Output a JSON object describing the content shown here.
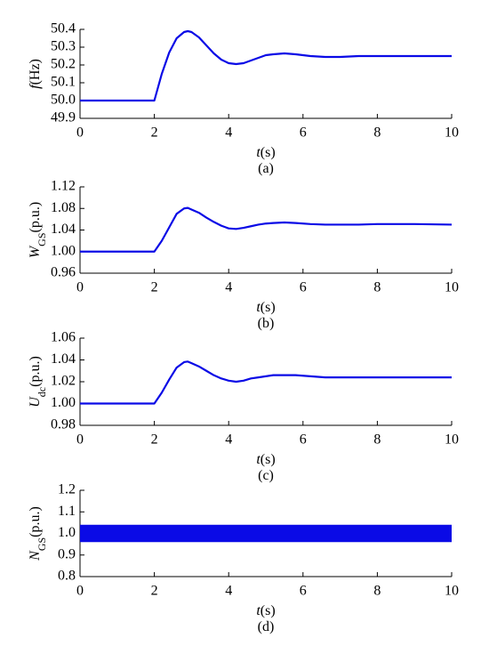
{
  "chart_data": [
    {
      "type": "line",
      "caption": "(a)",
      "ylabel": {
        "symbol": "f",
        "unit": "(Hz)"
      },
      "xlabel": {
        "symbol": "t",
        "unit": "(s)"
      },
      "xlim": [
        0,
        10
      ],
      "xticks": [
        0,
        2,
        4,
        6,
        8,
        10
      ],
      "ylim": [
        49.9,
        50.4
      ],
      "yticks": [
        {
          "value": 49.9,
          "label": "49.9"
        },
        {
          "value": 50,
          "label": "50.0"
        },
        50.1,
        50.2,
        50.3,
        50.4
      ],
      "series": [
        {
          "color": "#0a0ae6",
          "x": [
            0,
            2,
            2.2,
            2.4,
            2.6,
            2.8,
            2.9,
            3.0,
            3.2,
            3.4,
            3.6,
            3.8,
            4.0,
            4.2,
            4.4,
            4.6,
            4.8,
            5.0,
            5.2,
            5.5,
            5.8,
            6.2,
            6.6,
            7.0,
            7.5,
            8,
            9,
            10
          ],
          "values": [
            50.0,
            50.0,
            50.15,
            50.27,
            50.35,
            50.385,
            50.39,
            50.385,
            50.355,
            50.31,
            50.265,
            50.23,
            50.21,
            50.205,
            50.21,
            50.225,
            50.24,
            50.255,
            50.26,
            50.265,
            50.26,
            50.25,
            50.245,
            50.245,
            50.25,
            50.25,
            50.25,
            50.25
          ]
        }
      ]
    },
    {
      "type": "line",
      "caption": "(b)",
      "ylabel": {
        "symbol": "W",
        "sub": "GS",
        "unit": "(p.u.)"
      },
      "xlabel": {
        "symbol": "t",
        "unit": "(s)"
      },
      "xlim": [
        0,
        10
      ],
      "xticks": [
        0,
        2,
        4,
        6,
        8,
        10
      ],
      "ylim": [
        0.96,
        1.12
      ],
      "yticks": [
        0.96,
        {
          "value": 1,
          "label": "1.00"
        },
        1.04,
        1.08,
        1.12
      ],
      "series": [
        {
          "color": "#0a0ae6",
          "x": [
            0,
            2,
            2.2,
            2.4,
            2.6,
            2.8,
            2.9,
            3.0,
            3.2,
            3.4,
            3.6,
            3.8,
            4.0,
            4.2,
            4.4,
            4.6,
            4.8,
            5.0,
            5.2,
            5.5,
            5.8,
            6.2,
            6.6,
            7.0,
            7.5,
            8,
            9,
            10
          ],
          "values": [
            1.0,
            1.0,
            1.02,
            1.045,
            1.07,
            1.08,
            1.081,
            1.078,
            1.072,
            1.063,
            1.055,
            1.048,
            1.043,
            1.042,
            1.044,
            1.047,
            1.05,
            1.052,
            1.053,
            1.054,
            1.053,
            1.051,
            1.05,
            1.05,
            1.05,
            1.051,
            1.051,
            1.05
          ]
        }
      ]
    },
    {
      "type": "line",
      "caption": "(c)",
      "ylabel": {
        "symbol": "U",
        "sub": "dc",
        "unit": "(p.u.)"
      },
      "xlabel": {
        "symbol": "t",
        "unit": "(s)"
      },
      "xlim": [
        0,
        10
      ],
      "xticks": [
        0,
        2,
        4,
        6,
        8,
        10
      ],
      "ylim": [
        0.98,
        1.06
      ],
      "yticks": [
        0.98,
        {
          "value": 1,
          "label": "1.00"
        },
        1.02,
        1.04,
        1.06
      ],
      "series": [
        {
          "color": "#0a0ae6",
          "x": [
            0,
            2,
            2.2,
            2.4,
            2.6,
            2.8,
            2.9,
            3.0,
            3.2,
            3.4,
            3.6,
            3.8,
            4.0,
            4.2,
            4.4,
            4.6,
            4.8,
            5.0,
            5.2,
            5.5,
            5.8,
            6.2,
            6.6,
            7.0,
            7.5,
            8,
            9,
            10
          ],
          "values": [
            1.0,
            1.0,
            1.01,
            1.022,
            1.033,
            1.038,
            1.0385,
            1.037,
            1.034,
            1.03,
            1.026,
            1.023,
            1.021,
            1.02,
            1.021,
            1.023,
            1.024,
            1.025,
            1.026,
            1.026,
            1.026,
            1.025,
            1.024,
            1.024,
            1.024,
            1.024,
            1.024,
            1.024
          ]
        }
      ]
    },
    {
      "type": "band",
      "caption": "(d)",
      "ylabel": {
        "symbol": "N",
        "sub": "GS",
        "unit": "(p.u.)"
      },
      "xlabel": {
        "symbol": "t",
        "unit": "(s)"
      },
      "xlim": [
        0,
        10
      ],
      "xticks": [
        0,
        2,
        4,
        6,
        8,
        10
      ],
      "ylim": [
        0.8,
        1.2
      ],
      "yticks": [
        0.8,
        0.9,
        {
          "value": 1,
          "label": "1.0"
        },
        1.1,
        1.2
      ],
      "color": "#0a0ae6",
      "x": [
        0,
        10
      ],
      "low": [
        0.96,
        0.96
      ],
      "high": [
        1.04,
        1.04
      ]
    }
  ]
}
